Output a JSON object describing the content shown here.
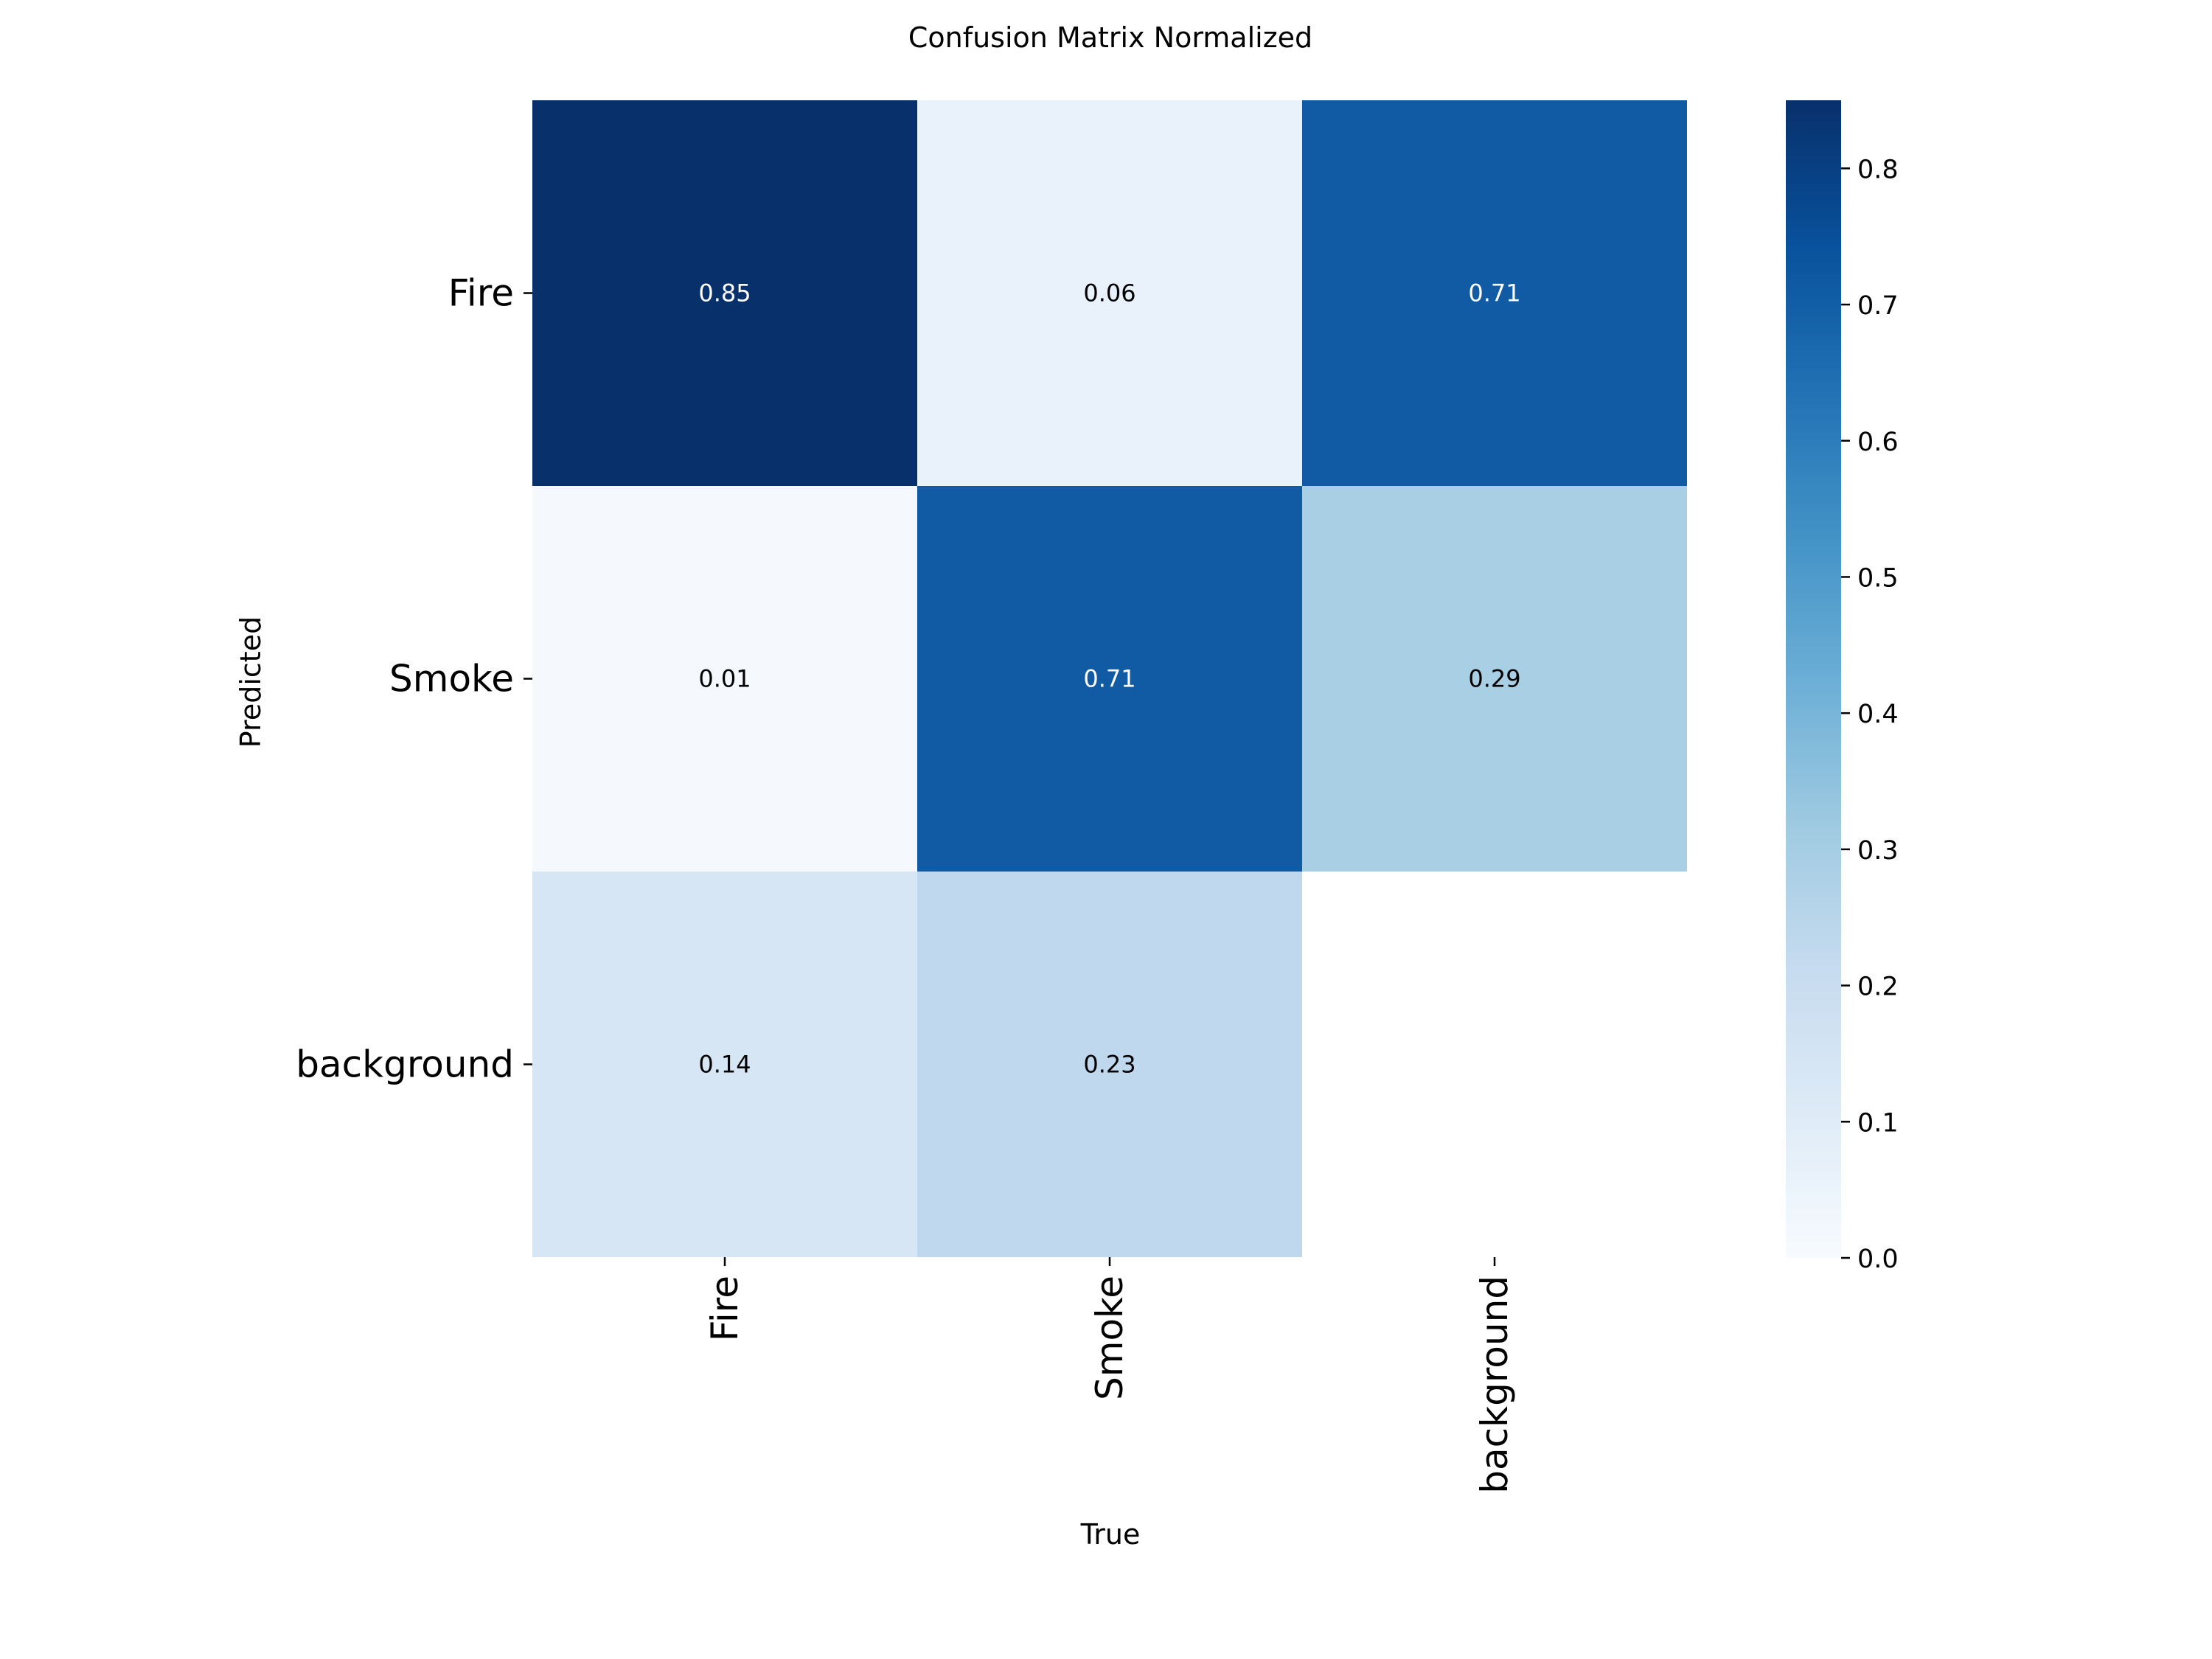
{
  "chart_data": {
    "type": "heatmap",
    "title": "Confusion Matrix Normalized",
    "xlabel": "True",
    "ylabel": "Predicted",
    "x_categories": [
      "Fire",
      "Smoke",
      "background"
    ],
    "y_categories": [
      "Fire",
      "Smoke",
      "background"
    ],
    "values": [
      [
        0.85,
        0.06,
        0.71
      ],
      [
        0.01,
        0.71,
        0.29
      ],
      [
        0.14,
        0.23,
        null
      ]
    ],
    "cell_labels": [
      [
        "0.85",
        "0.06",
        "0.71"
      ],
      [
        "0.01",
        "0.71",
        "0.29"
      ],
      [
        "0.14",
        "0.23",
        ""
      ]
    ],
    "colormap": "Blues",
    "colorbar": {
      "range": [
        0,
        0.85
      ],
      "ticks": [
        0.0,
        0.1,
        0.2,
        0.3,
        0.4,
        0.5,
        0.6,
        0.7,
        0.8
      ],
      "tick_labels": [
        "0.0",
        "0.1",
        "0.2",
        "0.3",
        "0.4",
        "0.5",
        "0.6",
        "0.7",
        "0.8"
      ]
    },
    "grid": false
  }
}
